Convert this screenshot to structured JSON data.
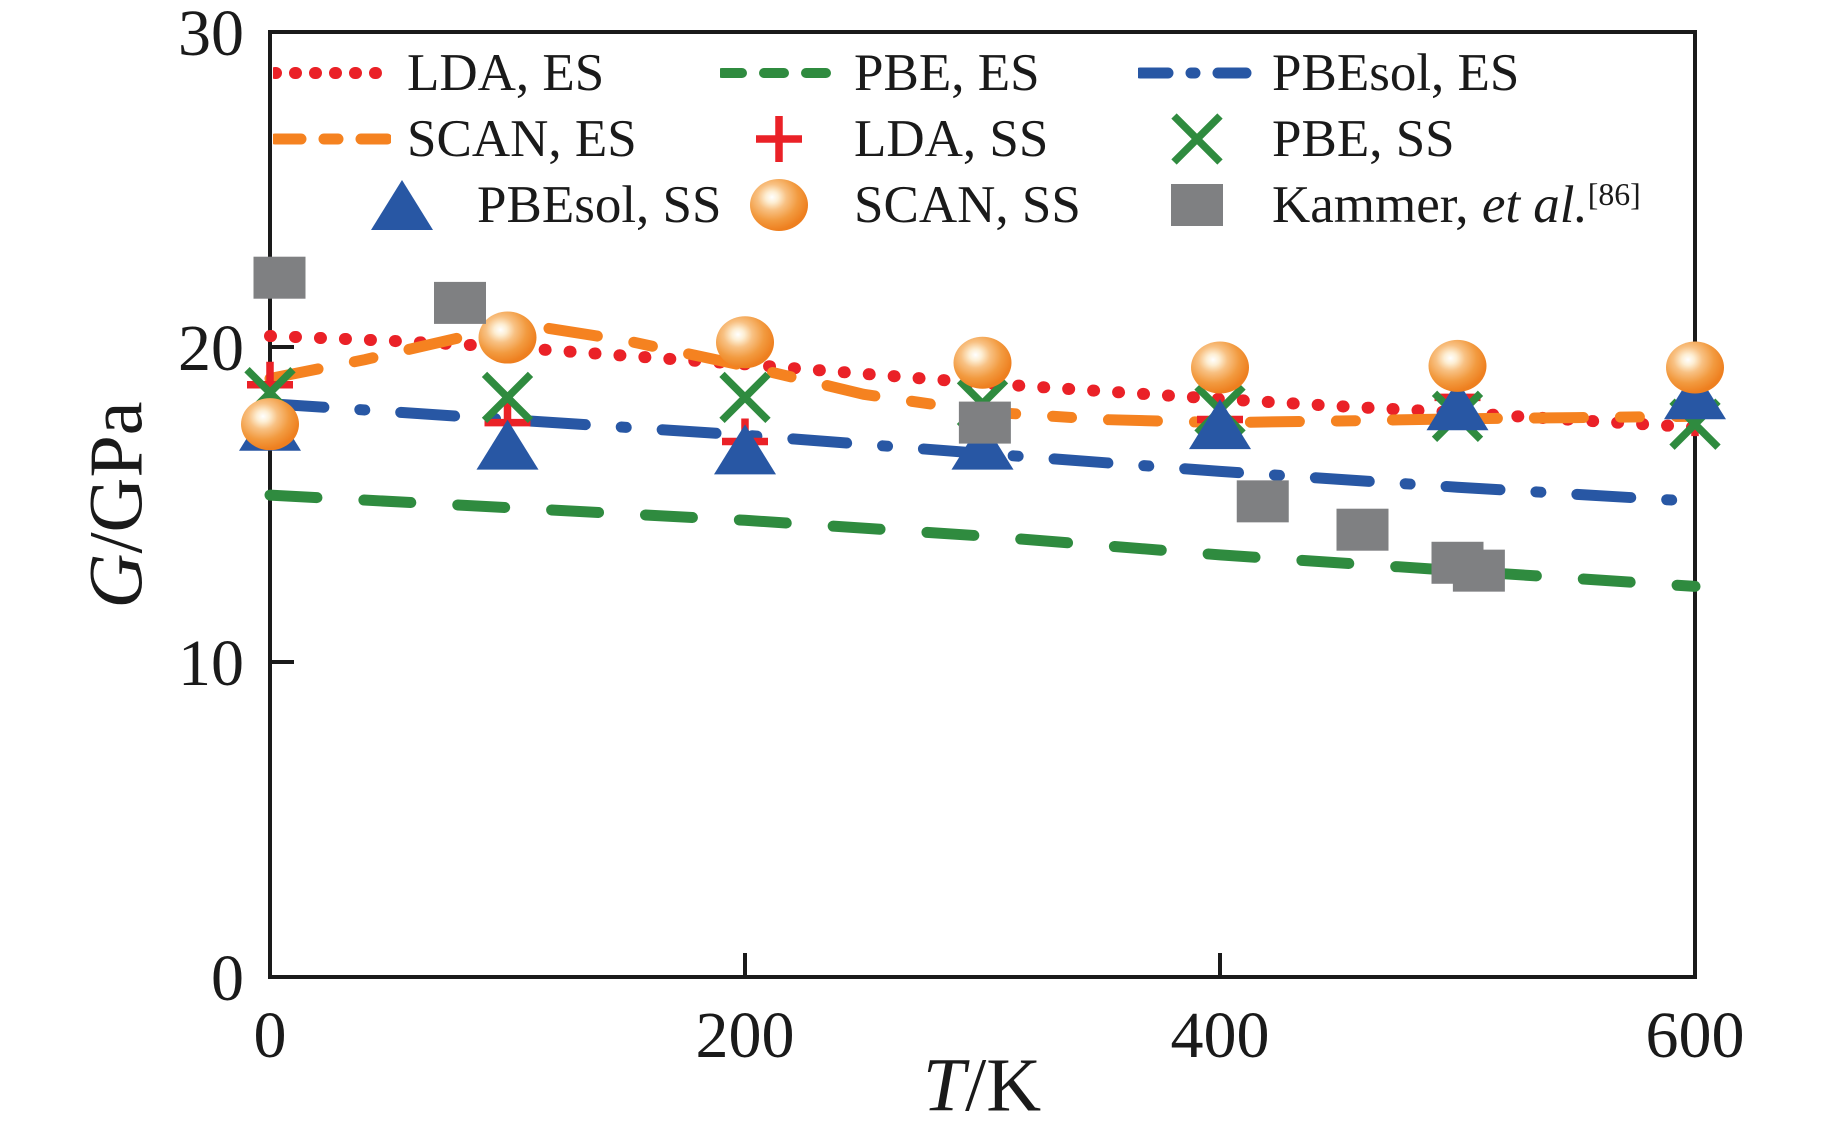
{
  "figure": {
    "background": "#ffffff",
    "frame_color": "#1a1a1a"
  },
  "axis": {
    "ylabel_italic": "G",
    "ylabel_rest": "/GPa",
    "xlabel_italic": "T",
    "xlabel_rest": "/K"
  },
  "chart_data": {
    "type": "line",
    "title": "",
    "xlabel": "T/K",
    "ylabel": "G/GPa",
    "xlim": [
      0,
      600
    ],
    "ylim": [
      0,
      30
    ],
    "grid": false,
    "legend_position": "top-inside",
    "xticks": [
      {
        "value": 0,
        "label": "0"
      },
      {
        "value": 200,
        "label": "200"
      },
      {
        "value": 400,
        "label": "400"
      },
      {
        "value": 600,
        "label": "600"
      }
    ],
    "yticks": [
      {
        "value": 0,
        "label": "0"
      },
      {
        "value": 10,
        "label": "10"
      },
      {
        "value": 20,
        "label": "20"
      },
      {
        "value": 30,
        "label": "30"
      }
    ],
    "series": [
      {
        "name": "LDA, ES",
        "legend_pre": "LDA, ES",
        "legend_it": "",
        "legend_sup": "",
        "color": "#ea2127",
        "line": "dot",
        "marker": null,
        "points": [
          [
            0,
            20.35
          ],
          [
            50,
            20.2
          ],
          [
            100,
            20.0
          ],
          [
            150,
            19.72
          ],
          [
            200,
            19.45
          ],
          [
            250,
            19.15
          ],
          [
            300,
            18.85
          ],
          [
            350,
            18.6
          ],
          [
            400,
            18.35
          ],
          [
            450,
            18.12
          ],
          [
            500,
            17.92
          ],
          [
            550,
            17.68
          ],
          [
            600,
            17.45
          ]
        ]
      },
      {
        "name": "PBE, ES",
        "legend_pre": "PBE, ES",
        "legend_it": "",
        "legend_sup": "",
        "color": "#2f8b3f",
        "line": "dash",
        "marker": null,
        "points": [
          [
            0,
            15.3
          ],
          [
            100,
            14.9
          ],
          [
            200,
            14.5
          ],
          [
            300,
            14.0
          ],
          [
            400,
            13.4
          ],
          [
            500,
            12.9
          ],
          [
            600,
            12.4
          ]
        ]
      },
      {
        "name": "PBEsol, ES",
        "legend_pre": "PBEsol, ES",
        "legend_it": "",
        "legend_sup": "",
        "color": "#2857a4",
        "line": "dashdot",
        "marker": null,
        "points": [
          [
            0,
            18.2
          ],
          [
            100,
            17.7
          ],
          [
            200,
            17.2
          ],
          [
            300,
            16.62
          ],
          [
            400,
            16.05
          ],
          [
            500,
            15.55
          ],
          [
            600,
            15.1
          ]
        ]
      },
      {
        "name": "SCAN, ES",
        "legend_pre": "SCAN, ES",
        "legend_it": "",
        "legend_sup": "",
        "color": "#f58220",
        "line": "longdash",
        "marker": null,
        "points": [
          [
            0,
            19.0
          ],
          [
            40,
            19.6
          ],
          [
            80,
            20.3
          ],
          [
            115,
            20.62
          ],
          [
            150,
            20.2
          ],
          [
            200,
            19.4
          ],
          [
            250,
            18.5
          ],
          [
            300,
            17.95
          ],
          [
            350,
            17.7
          ],
          [
            400,
            17.6
          ],
          [
            450,
            17.65
          ],
          [
            500,
            17.72
          ],
          [
            550,
            17.76
          ],
          [
            600,
            17.8
          ]
        ]
      },
      {
        "name": "LDA, SS",
        "legend_pre": "LDA, SS",
        "legend_it": "",
        "legend_sup": "",
        "color": "#ea2127",
        "line": null,
        "marker": "plus",
        "points": [
          [
            0,
            18.8
          ],
          [
            100,
            17.6
          ],
          [
            200,
            17.0
          ],
          [
            300,
            17.3
          ],
          [
            400,
            17.7
          ],
          [
            500,
            18.4
          ],
          [
            600,
            17.9
          ]
        ]
      },
      {
        "name": "PBE, SS",
        "legend_pre": "PBE, SS",
        "legend_it": "",
        "legend_sup": "",
        "color": "#2f8b3f",
        "line": null,
        "marker": "x",
        "points": [
          [
            0,
            18.55
          ],
          [
            100,
            18.4
          ],
          [
            200,
            18.4
          ],
          [
            300,
            18.2
          ],
          [
            400,
            18.0
          ],
          [
            500,
            17.8
          ],
          [
            600,
            17.55
          ]
        ]
      },
      {
        "name": "PBEsol, SS",
        "legend_pre": "PBEsol, SS",
        "legend_it": "",
        "legend_sup": "",
        "color": "#2857a4",
        "line": null,
        "marker": "triangle",
        "points": [
          [
            0,
            17.5
          ],
          [
            100,
            16.9
          ],
          [
            200,
            16.75
          ],
          [
            300,
            16.9
          ],
          [
            400,
            17.55
          ],
          [
            500,
            18.15
          ],
          [
            600,
            18.5
          ]
        ]
      },
      {
        "name": "SCAN, SS",
        "legend_pre": "SCAN, SS",
        "legend_it": "",
        "legend_sup": "",
        "color": "#ee7f1f",
        "line": null,
        "marker": "sphere",
        "points": [
          [
            0,
            17.55
          ],
          [
            100,
            20.3
          ],
          [
            200,
            20.15
          ],
          [
            300,
            19.5
          ],
          [
            400,
            19.35
          ],
          [
            500,
            19.4
          ],
          [
            600,
            19.35
          ]
        ]
      },
      {
        "name": "Kammer, et al. [86]",
        "legend_pre": "Kammer, ",
        "legend_it": "et al.",
        "legend_sup": "[86]",
        "color": "#7f8082",
        "line": null,
        "marker": "square",
        "points": [
          [
            4,
            22.2
          ],
          [
            80,
            21.4
          ],
          [
            301,
            17.6
          ],
          [
            418,
            15.1
          ],
          [
            460,
            14.2
          ],
          [
            500,
            13.15
          ],
          [
            509,
            12.9
          ]
        ]
      }
    ]
  }
}
